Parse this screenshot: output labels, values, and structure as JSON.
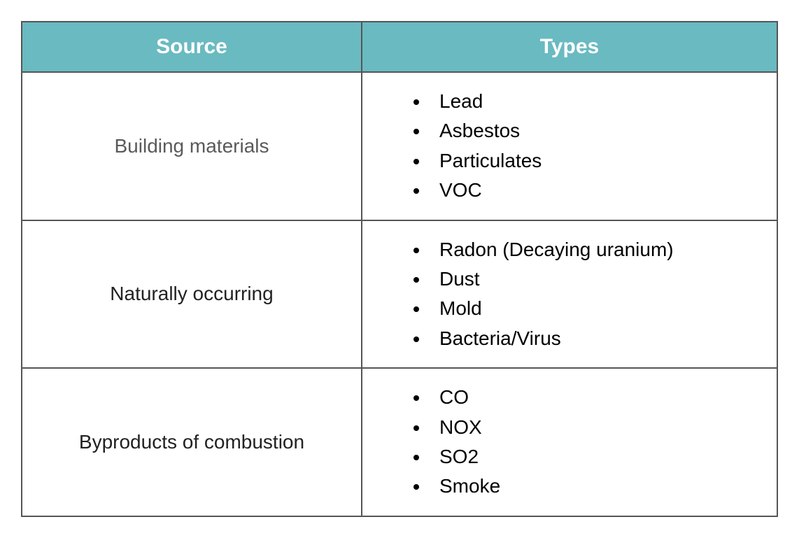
{
  "table": {
    "header_bg_color": "#6abac1",
    "header_text_color": "#ffffff",
    "border_color": "#555555",
    "columns": [
      "Source",
      "Types"
    ],
    "rows": [
      {
        "source": "Building materials",
        "source_color": "#5a5a5a",
        "types": [
          "Lead",
          "Asbestos",
          "Particulates",
          "VOC"
        ]
      },
      {
        "source": "Naturally occurring",
        "source_color": "#222222",
        "types": [
          "Radon (Decaying uranium)",
          "Dust",
          "Mold",
          "Bacteria/Virus"
        ]
      },
      {
        "source": "Byproducts of combustion",
        "source_color": "#222222",
        "types": [
          "CO",
          "NOX",
          "SO2",
          "Smoke"
        ]
      }
    ]
  }
}
